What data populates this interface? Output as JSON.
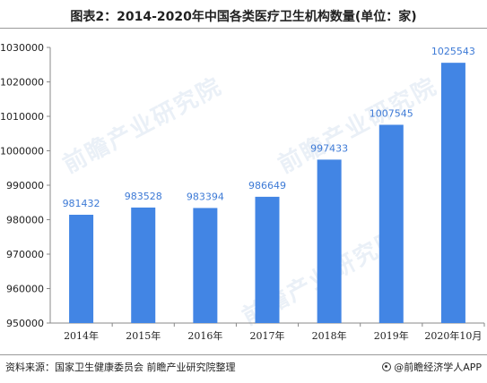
{
  "title": "图表2：2014-2020年中国各类医疗卫生机构数量(单位：家)",
  "source_text": "资料来源：国家卫生健康委员会 前瞻产业研究院整理",
  "brand_text": "@前瞻经济学人APP",
  "watermark_text": "前瞻产业研究院",
  "colors": {
    "bar": "#4285e4",
    "label": "#3d7ad6",
    "axis": "#888888",
    "text": "#222222"
  },
  "chart_data": {
    "type": "bar",
    "title": "图表2：2014-2020年中国各类医疗卫生机构数量(单位：家)",
    "categories": [
      "2014年",
      "2015年",
      "2016年",
      "2017年",
      "2018年",
      "2019年",
      "2020年10月"
    ],
    "values": [
      981432,
      983528,
      983394,
      986649,
      997433,
      1007545,
      1025543
    ],
    "ylim": [
      950000,
      1030000
    ],
    "yticks": [
      950000,
      960000,
      970000,
      980000,
      990000,
      1000000,
      1010000,
      1020000,
      1030000
    ],
    "grid": false,
    "legend": "none",
    "xlabel": "",
    "ylabel": ""
  }
}
